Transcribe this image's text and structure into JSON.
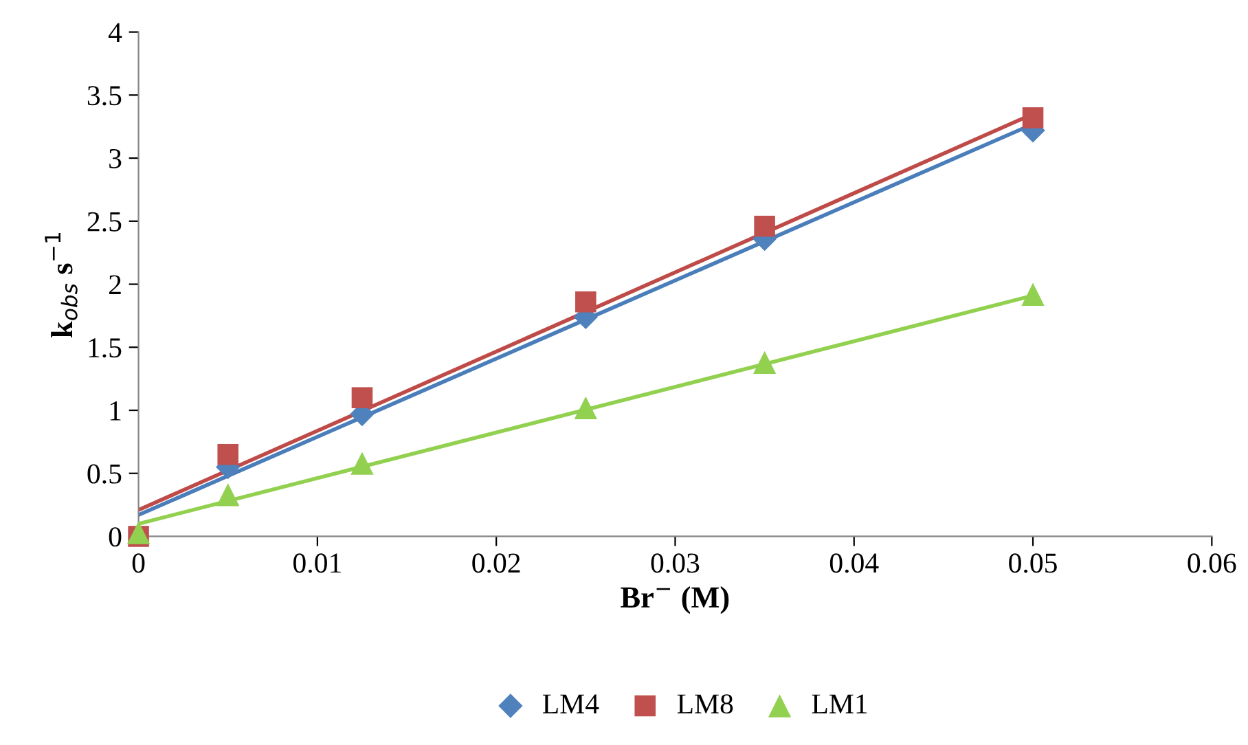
{
  "chart_data": {
    "type": "scatter",
    "xlabel": "Br$^{−}$ (M)",
    "ylabel": "k$_{obs}$ s$^{−1}$",
    "xlim": [
      0,
      0.06
    ],
    "xticks": [
      0,
      0.01,
      0.02,
      0.03,
      0.04,
      0.05,
      0.06
    ],
    "ylim": [
      0,
      4
    ],
    "yticks": [
      0,
      0.5,
      1,
      1.5,
      2,
      2.5,
      3,
      3.5,
      4
    ],
    "grid": false,
    "legend": "bottom",
    "series": [
      {
        "name": "LM4",
        "marker": "diamond",
        "color": "#4f81bd",
        "x": [
          0.005,
          0.0125,
          0.025,
          0.035,
          0.05
        ],
        "values": [
          0.55,
          0.97,
          1.74,
          2.36,
          3.22
        ]
      },
      {
        "name": "LM8",
        "marker": "square",
        "color": "#c0504d",
        "x": [
          0,
          0.005,
          0.0125,
          0.025,
          0.035,
          0.05
        ],
        "values": [
          0.0,
          0.65,
          1.1,
          1.86,
          2.46,
          3.32
        ]
      },
      {
        "name": "LM1",
        "marker": "triangle",
        "color": "#92d050",
        "x": [
          0,
          0.005,
          0.0125,
          0.025,
          0.035,
          0.05
        ],
        "values": [
          0.03,
          0.33,
          0.58,
          1.02,
          1.38,
          1.92
        ]
      },
      {
        "type": "line",
        "color": "#4a7ebb",
        "x": [
          0,
          0.05
        ],
        "values": [
          0.17,
          3.27
        ]
      },
      {
        "type": "line",
        "color": "#be4b48",
        "x": [
          0,
          0.05
        ],
        "values": [
          0.21,
          3.35
        ]
      },
      {
        "type": "line",
        "color": "#92d050",
        "x": [
          0,
          0.05
        ],
        "values": [
          0.1,
          1.91
        ]
      }
    ]
  }
}
